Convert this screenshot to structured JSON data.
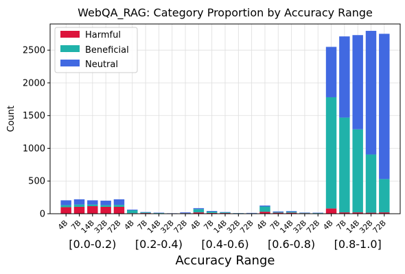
{
  "chart_data": {
    "type": "bar",
    "stacked": true,
    "title": "WebQA_RAG: Category Proportion by Accuracy Range",
    "xlabel": "Accuracy Range",
    "ylabel": "Count",
    "ylim": [
      0,
      2900
    ],
    "yticks": [
      0,
      500,
      1000,
      1500,
      2000,
      2500
    ],
    "grid": true,
    "legend_position": "top-left",
    "models": [
      "4B",
      "7B",
      "14B",
      "32B",
      "72B"
    ],
    "groups": [
      "[0.0-0.2)",
      "[0.2-0.4)",
      "[0.4-0.6)",
      "[0.6-0.8)",
      "[0.8-1.0]"
    ],
    "series": [
      {
        "name": "Harmful",
        "color": "#dc143c",
        "values": [
          [
            100,
            105,
            115,
            105,
            105
          ],
          [
            8,
            10,
            6,
            3,
            8
          ],
          [
            20,
            12,
            10,
            5,
            5
          ],
          [
            30,
            15,
            15,
            8,
            6
          ],
          [
            80,
            20,
            20,
            15,
            20
          ]
        ]
      },
      {
        "name": "Beneficial",
        "color": "#20b2aa",
        "values": [
          [
            30,
            35,
            25,
            25,
            30
          ],
          [
            45,
            10,
            5,
            2,
            2
          ],
          [
            50,
            20,
            10,
            3,
            2
          ],
          [
            80,
            10,
            15,
            5,
            4
          ],
          [
            1700,
            1450,
            1270,
            890,
            510
          ]
        ]
      },
      {
        "name": "Neutral",
        "color": "#4169e1",
        "values": [
          [
            75,
            80,
            65,
            70,
            85
          ],
          [
            10,
            5,
            5,
            2,
            10
          ],
          [
            15,
            10,
            5,
            2,
            5
          ],
          [
            15,
            10,
            10,
            5,
            5
          ],
          [
            770,
            1240,
            1440,
            1890,
            2220
          ]
        ]
      }
    ]
  }
}
